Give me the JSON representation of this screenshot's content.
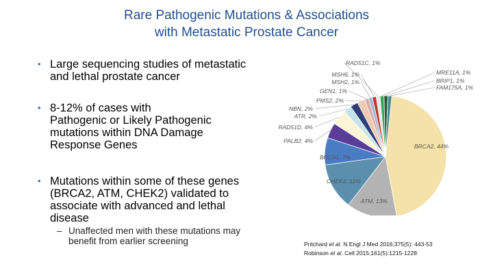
{
  "slide": {
    "title_line1": "Rare Pathogenic Mutations & Associations",
    "title_line2": "with Metastatic Prostate Cancer"
  },
  "bullets": [
    {
      "lines": [
        "Large sequencing studies of metastatic",
        "and lethal prostate cancer"
      ]
    },
    {
      "lines": [
        "8-12% of cases with",
        "Pathogenic or Likely Pathogenic",
        "mutations within DNA Damage",
        "Response Genes"
      ]
    },
    {
      "lines": [
        "Mutations within some of these genes",
        "(BRCA2, ATM, CHEK2) validated to",
        "associate with advanced and lethal",
        "disease"
      ]
    }
  ],
  "sub_bullet": {
    "dash": "–",
    "lines": [
      "Unaffected men with these mutations may",
      "benefit from earlier screening"
    ]
  },
  "bullet_marker": "•",
  "chart_data": {
    "type": "pie",
    "unit": "%",
    "slices": [
      {
        "label": "BRCA2",
        "value": 44,
        "color": "#f4e2a8"
      },
      {
        "label": "ATM",
        "value": 13,
        "color": "#b3b3b3"
      },
      {
        "label": "CHEK2",
        "value": 12,
        "color": "#5a8fae"
      },
      {
        "label": "BRCA1",
        "value": 7,
        "color": "#4a7cc4"
      },
      {
        "label": "PALB2",
        "value": 4,
        "color": "#5a3d98"
      },
      {
        "label": "RAD51D",
        "value": 4,
        "color": "#fbf4d6"
      },
      {
        "label": "ATR",
        "value": 2,
        "color": "#c6e3ea"
      },
      {
        "label": "NBN",
        "value": 2,
        "color": "#2d3e7a"
      },
      {
        "label": "PMS2",
        "value": 2,
        "color": "#f0c9b0"
      },
      {
        "label": "GEN1",
        "value": 1,
        "color": "#d9a7a5"
      },
      {
        "label": "MSH2",
        "value": 1,
        "color": "#a5b6d6"
      },
      {
        "label": "MSH6",
        "value": 1,
        "color": "#c0392b"
      },
      {
        "label": "RAD51C",
        "value": 1,
        "color": "#e8e8e8"
      },
      {
        "label": "MRE11A",
        "value": 1,
        "color": "#3aa35a"
      },
      {
        "label": "BRIP1",
        "value": 1,
        "color": "#245e3a"
      },
      {
        "label": "FAM175A",
        "value": 1,
        "color": "#4a8a8c"
      }
    ],
    "label_texts": {
      "BRCA2": "BRCA2, 44%",
      "ATM": "ATM, 13%",
      "CHEK2": "CHEK2, 12%",
      "BRCA1": "BRCA1, 7%",
      "PALB2": "PALB2, 4%",
      "RAD51D": "RAD51D, 4%",
      "ATR": "ATR, 2%",
      "NBN": "NBN, 2%",
      "PMS2": "PMS2, 2%",
      "GEN1": "GEN1, 1%",
      "MSH2": "MSH2, 1%",
      "MSH6": "MSH6, 1%",
      "RAD51C": "RAD51C, 1%",
      "MRE11A": "MRE11A, 1%",
      "BRIP1": "BRIP1, 1%",
      "FAM175A": "FAM175A, 1%"
    }
  },
  "references": {
    "ref1_author": "Pritchard",
    "ref1_etal": "et al",
    "ref1_rest": ". N Engl J Med 2016;375(5): 443-53",
    "ref2_author": "Robinson",
    "ref2_etal": "et al",
    "ref2_rest": ". Cell 2015;161(5):1215-1228"
  }
}
